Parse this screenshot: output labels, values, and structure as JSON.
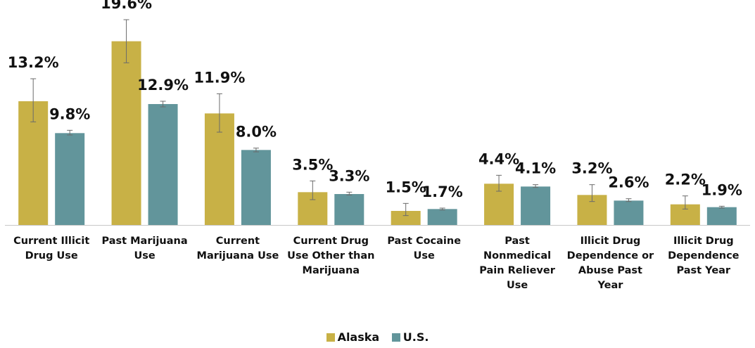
{
  "chart_data": {
    "type": "bar",
    "categories": [
      "Current Illicit Drug Use",
      "Past Marijuana Use",
      "Current Marijuana Use",
      "Current Drug Use Other than Marijuana",
      "Past Cocaine Use",
      "Past Nonmedical Pain Reliever Use",
      "Illicit Drug Dependence or Abuse Past Year",
      "Illicit Drug Dependence Past Year"
    ],
    "category_lines": [
      [
        "Current Illicit",
        "Drug Use"
      ],
      [
        "Past Marijuana",
        "Use"
      ],
      [
        "Current",
        "Marijuana Use"
      ],
      [
        "Current Drug",
        "Use Other than",
        "Marijuana"
      ],
      [
        "Past Cocaine",
        "Use"
      ],
      [
        "Past",
        "Nonmedical",
        "Pain Reliever",
        "Use"
      ],
      [
        "Illicit Drug",
        "Dependence or",
        "Abuse Past",
        "Year"
      ],
      [
        "Illicit Drug",
        "Dependence",
        "Past Year"
      ]
    ],
    "series": [
      {
        "name": "Alaska",
        "color": "#c8b146",
        "values": [
          13.2,
          19.6,
          11.9,
          3.5,
          1.5,
          4.4,
          3.2,
          2.2
        ],
        "labels": [
          "13.2%",
          "19.6%",
          "11.9%",
          "3.5%",
          "1.5%",
          "4.4%",
          "3.2%",
          "2.2%"
        ],
        "error_low": [
          11.0,
          17.3,
          9.9,
          2.7,
          1.0,
          3.6,
          2.5,
          1.7
        ],
        "error_high": [
          15.6,
          21.9,
          14.0,
          4.7,
          2.3,
          5.3,
          4.3,
          3.1
        ]
      },
      {
        "name": "U.S.",
        "color": "#62959b",
        "values": [
          9.8,
          12.9,
          8.0,
          3.3,
          1.7,
          4.1,
          2.6,
          1.9
        ],
        "labels": [
          "9.8%",
          "12.9%",
          "8.0%",
          "3.3%",
          "1.7%",
          "4.1%",
          "2.6%",
          "1.9%"
        ],
        "error_low": [
          9.6,
          12.6,
          7.8,
          3.2,
          1.6,
          4.0,
          2.5,
          1.8
        ],
        "error_high": [
          10.1,
          13.2,
          8.2,
          3.5,
          1.8,
          4.3,
          2.8,
          2.0
        ]
      }
    ],
    "ylim": [
      0,
      23.1
    ],
    "grid": false,
    "legend_position": "bottom",
    "error_bar_color": "#6b6b6b",
    "axis_color": "#c8c8c8"
  }
}
